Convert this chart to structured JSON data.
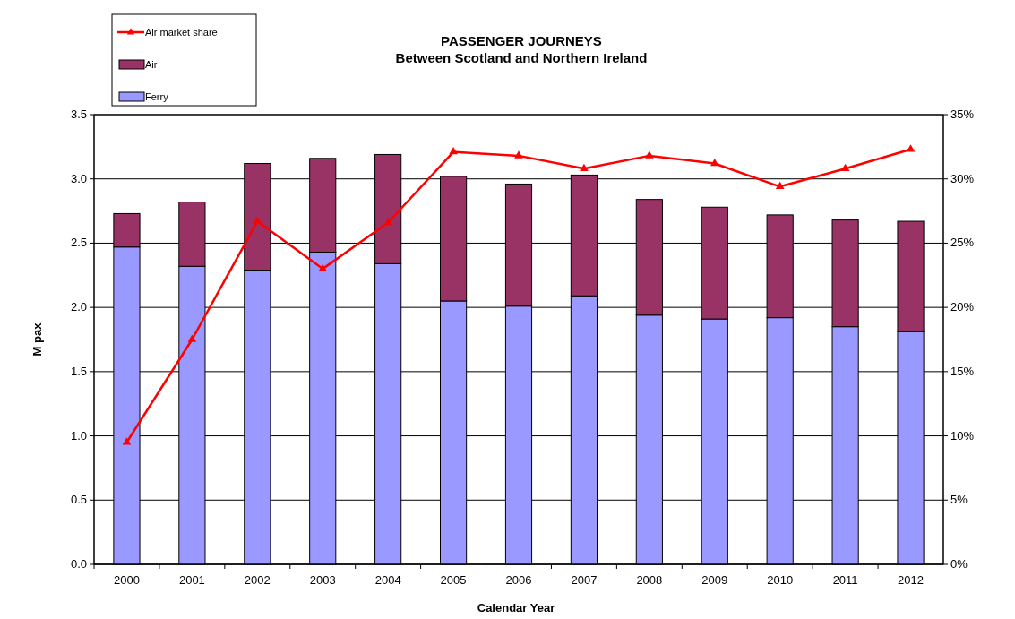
{
  "chart_data": {
    "type": "bar",
    "title": "PASSENGER JOURNEYS",
    "subtitle": "Between Scotland and Northern Ireland",
    "xlabel": "Calendar Year",
    "ylabel": "M pax",
    "categories": [
      "2000",
      "2001",
      "2002",
      "2003",
      "2004",
      "2005",
      "2006",
      "2007",
      "2008",
      "2009",
      "2010",
      "2011",
      "2012"
    ],
    "stacked": true,
    "series": [
      {
        "name": "Ferry",
        "color": "#9999ff",
        "values": [
          2.47,
          2.32,
          2.29,
          2.43,
          2.34,
          2.05,
          2.01,
          2.09,
          1.94,
          1.91,
          1.92,
          1.85,
          1.81
        ]
      },
      {
        "name": "Air",
        "color": "#993366",
        "values": [
          0.26,
          0.5,
          0.83,
          0.73,
          0.85,
          0.97,
          0.95,
          0.94,
          0.9,
          0.87,
          0.8,
          0.83,
          0.86
        ]
      },
      {
        "name": "Air market share",
        "type": "line",
        "axis": "y2",
        "color": "#ff0000",
        "marker": "triangle",
        "values": [
          9.5,
          17.5,
          26.7,
          23.0,
          26.6,
          32.1,
          31.8,
          30.8,
          31.8,
          31.2,
          29.4,
          30.8,
          32.3
        ]
      }
    ],
    "ylim": [
      0,
      3.5
    ],
    "yticks": [
      {
        "value": 0,
        "label": "0.0"
      },
      {
        "value": 0.5,
        "label": "0.5"
      },
      {
        "value": 1,
        "label": "1.0"
      },
      {
        "value": 1.5,
        "label": "1.5"
      },
      {
        "value": 2,
        "label": "2.0"
      },
      {
        "value": 2.5,
        "label": "2.5"
      },
      {
        "value": 3,
        "label": "3.0"
      },
      {
        "value": 3.5,
        "label": "3.5"
      }
    ],
    "y2lim": [
      0,
      35
    ],
    "y2ticks": [
      {
        "value": 0,
        "label": "0%"
      },
      {
        "value": 5,
        "label": "5%"
      },
      {
        "value": 10,
        "label": "10%"
      },
      {
        "value": 15,
        "label": "15%"
      },
      {
        "value": 20,
        "label": "20%"
      },
      {
        "value": 25,
        "label": "25%"
      },
      {
        "value": 30,
        "label": "30%"
      },
      {
        "value": 35,
        "label": "35%"
      }
    ],
    "grid": "y",
    "legend": "top left"
  }
}
